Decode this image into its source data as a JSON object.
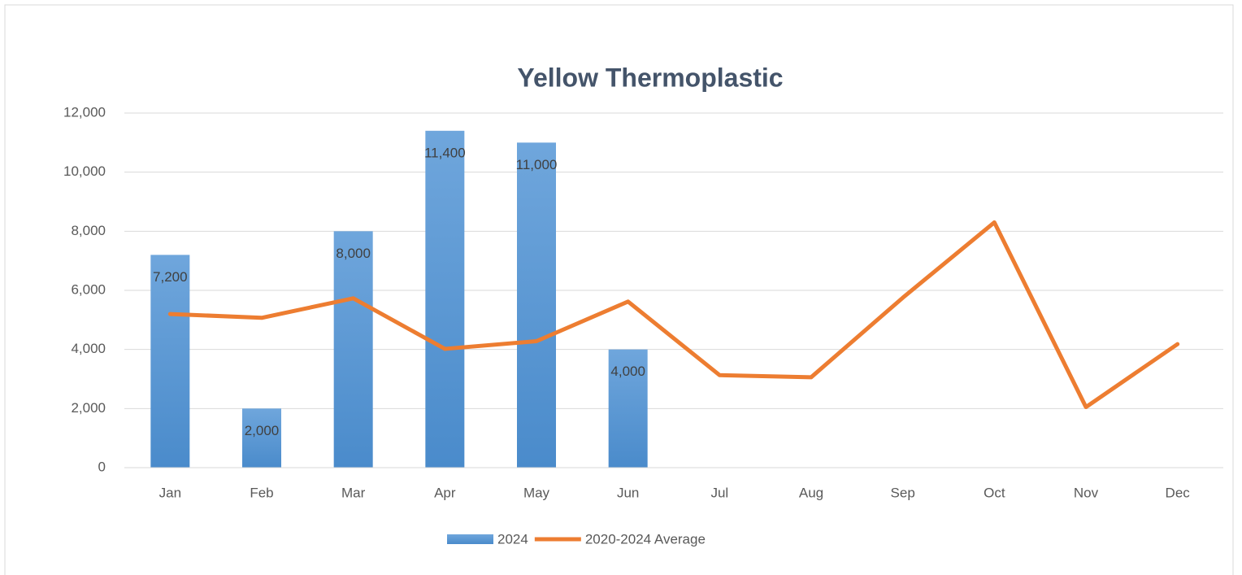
{
  "chart_data": {
    "type": "combo",
    "title": "Yellow Thermoplastic",
    "categories": [
      "Jan",
      "Feb",
      "Mar",
      "Apr",
      "May",
      "Jun",
      "Jul",
      "Aug",
      "Sep",
      "Oct",
      "Nov",
      "Dec"
    ],
    "series": [
      {
        "name": "2024",
        "type": "bar",
        "color": "#5b9bd5",
        "values": [
          7200,
          2000,
          8000,
          11400,
          11000,
          4000,
          null,
          null,
          null,
          null,
          null,
          null
        ],
        "value_labels": [
          "7,200",
          "2,000",
          "8,000",
          "11,400",
          "11,000",
          "4,000",
          null,
          null,
          null,
          null,
          null,
          null
        ]
      },
      {
        "name": "2020-2024 Average",
        "type": "line",
        "color": "#ed7d31",
        "values": [
          5200,
          5070,
          5730,
          4020,
          4280,
          5620,
          3130,
          3060,
          5750,
          8300,
          2050,
          4180
        ]
      }
    ],
    "ylim": [
      0,
      12000
    ],
    "yticks": [
      0,
      {
        "value": 2000,
        "label": "2,000"
      },
      {
        "value": 4000,
        "label": "4,000"
      },
      {
        "value": 6000,
        "label": "6,000"
      },
      {
        "value": 8000,
        "label": "8,000"
      },
      {
        "value": 10000,
        "label": "10,000"
      },
      {
        "value": 12000,
        "label": "12,000"
      }
    ],
    "grid": true,
    "legend": "bottom"
  }
}
